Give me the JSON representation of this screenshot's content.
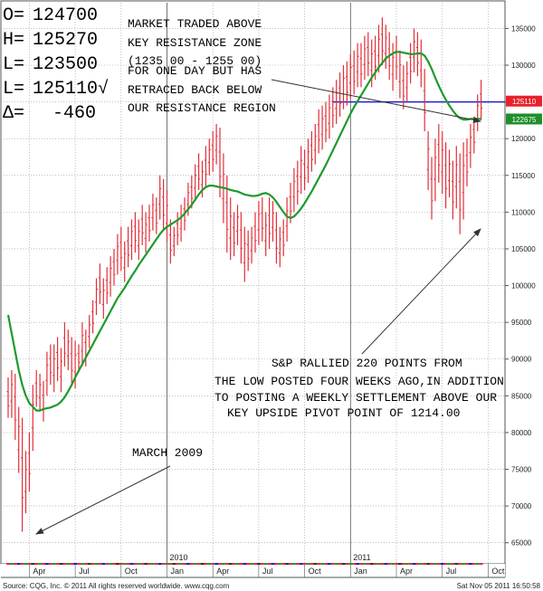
{
  "chart_data": {
    "type": "bar",
    "subtype": "weekly-ohlc-with-moving-average",
    "ohlc_readout": {
      "open_label": "O=",
      "open": "124700",
      "high_label": "H=",
      "high": "125270",
      "low_label": "L=",
      "low": "123500",
      "last_label": "L=",
      "last": "125110√",
      "change_label": "Δ=",
      "change": "-460"
    },
    "annotations": [
      {
        "lines": [
          "MARKET TRADED ABOVE",
          "KEY RESISTANCE ZONE",
          "(1235 00 - 1255 00)",
          "FOR ONE DAY BUT HAS",
          "RETRACED BACK BELOW",
          "OUR RESISTANCE REGION"
        ],
        "arrow_to": {
          "x": "2011-10-03",
          "y": 123000
        }
      },
      {
        "lines": [
          "S&P RALLIED 220 POINTS FROM",
          "THE LOW POSTED FOUR WEEKS AGO,IN ADDITION",
          "TO POSTING A WEEKLY SETTLEMENT ABOVE OUR",
          "KEY UPSIDE PIVOT POINT OF 1214.00"
        ],
        "arrow_to": {
          "x": "2011-10-03",
          "y": 108000
        }
      },
      {
        "lines": [
          "MARCH 2009"
        ],
        "arrow_to": {
          "x": "2009-03-09",
          "y": 67000
        }
      }
    ],
    "y_ticks": [
      135000,
      130000,
      125000,
      120000,
      115000,
      110000,
      105000,
      100000,
      95000,
      90000,
      85000,
      80000,
      75000,
      70000,
      65000
    ],
    "y_tick_labels": [
      "135000",
      "130000",
      "125000",
      "120000",
      "115000",
      "110000",
      "105000",
      "100000",
      "95000",
      "90000",
      "85000",
      "80000",
      "75000",
      "70000",
      "65000"
    ],
    "ylim": [
      62500,
      138500
    ],
    "x_month_ticks": [
      {
        "label": "Apr",
        "week": 6
      },
      {
        "label": "Jul",
        "week": 19
      },
      {
        "label": "Oct",
        "week": 32
      },
      {
        "label": "Jan",
        "week": 45
      },
      {
        "label": "Apr",
        "week": 58
      },
      {
        "label": "Jul",
        "week": 71
      },
      {
        "label": "Oct",
        "week": 84
      },
      {
        "label": "Jan",
        "week": 97
      },
      {
        "label": "Apr",
        "week": 110
      },
      {
        "label": "Jul",
        "week": 123
      },
      {
        "label": "Oct",
        "week": 136
      }
    ],
    "x_year_ticks": [
      {
        "label": "2010",
        "week": 45
      },
      {
        "label": "2011",
        "week": 97
      }
    ],
    "price_tags": [
      {
        "value": 125110,
        "label": "125110",
        "color": "#e8212b"
      },
      {
        "value": 122675,
        "label": "122675",
        "color": "#1f8f2a"
      }
    ],
    "resistance_line": {
      "value": 125000,
      "from_week": 92,
      "to_week": 142,
      "color": "#1f1fd0"
    },
    "series": [
      {
        "style": "ohlc",
        "color": "#e0303a",
        "highs": [
          87500,
          88500,
          88000,
          83500,
          82000,
          77500,
          80000,
          86500,
          88500,
          88000,
          87000,
          91000,
          92000,
          92000,
          93000,
          91500,
          95000,
          94000,
          93000,
          92500,
          92000,
          95000,
          94000,
          96000,
          98000,
          101000,
          103000,
          101000,
          102500,
          104000,
          105000,
          107000,
          108000,
          106000,
          108000,
          109000,
          110000,
          109000,
          111000,
          110000,
          111000,
          112500,
          112000,
          115000,
          114500,
          113000,
          109000,
          108000,
          110000,
          111000,
          112000,
          114000,
          115000,
          116500,
          118000,
          117000,
          119000,
          120000,
          121000,
          122000,
          121500,
          118000,
          115000,
          112000,
          110000,
          111000,
          110000,
          108000,
          107500,
          108000,
          110000,
          111500,
          112000,
          110000,
          112000,
          111500,
          110000,
          108000,
          109000,
          112000,
          114000,
          116000,
          117000,
          119000,
          118500,
          120000,
          121000,
          122000,
          124000,
          124500,
          125000,
          126000,
          127000,
          128000,
          129000,
          130000,
          130500,
          131500,
          132000,
          133000,
          133000,
          134000,
          134500,
          133500,
          134000,
          135500,
          136500,
          135500,
          134500,
          133000,
          134000,
          132000,
          130000,
          130500,
          133000,
          135000,
          134500,
          133500,
          129500,
          121000,
          117500,
          120000,
          122000,
          121000,
          119500,
          118500,
          117000,
          119000,
          118000,
          119500,
          120000,
          122000,
          123000,
          126000,
          128000
        ],
        "lows": [
          82000,
          82000,
          79000,
          74500,
          66500,
          69000,
          72000,
          77500,
          83500,
          83000,
          81500,
          85000,
          86500,
          85500,
          87000,
          85500,
          89000,
          88500,
          86500,
          86000,
          88500,
          89000,
          89000,
          91500,
          93500,
          96000,
          97500,
          95500,
          97500,
          98500,
          100000,
          101500,
          102000,
          100500,
          102500,
          103500,
          104500,
          103500,
          105500,
          104500,
          106000,
          107500,
          107000,
          109000,
          107500,
          106000,
          103000,
          104000,
          105500,
          106000,
          107500,
          109500,
          110500,
          111500,
          113000,
          112000,
          113500,
          115000,
          115500,
          116500,
          112000,
          108500,
          104500,
          103500,
          104000,
          105500,
          103000,
          100500,
          102000,
          103000,
          104500,
          105500,
          106000,
          104000,
          105000,
          106000,
          103000,
          102500,
          104000,
          106000,
          108500,
          110000,
          111000,
          112500,
          113000,
          114000,
          115500,
          116500,
          118000,
          118500,
          119500,
          120000,
          121500,
          122000,
          123000,
          124000,
          124500,
          125500,
          126000,
          127000,
          127000,
          128000,
          128500,
          127000,
          128000,
          129000,
          130000,
          129500,
          128000,
          126500,
          128000,
          125500,
          124000,
          125000,
          127500,
          129000,
          128500,
          127000,
          121000,
          113000,
          109000,
          111500,
          114000,
          112500,
          110500,
          112000,
          109000,
          110500,
          107000,
          109000,
          113500,
          116000,
          118000,
          121000,
          122500
        ]
      },
      {
        "name": "",
        "style": "line",
        "color": "#1e9a2c",
        "values": [
          96000,
          93500,
          91000,
          88500,
          86500,
          85000,
          84000,
          83500,
          83000,
          83000,
          83200,
          83300,
          83400,
          83600,
          83800,
          84200,
          84800,
          85600,
          86500,
          87500,
          88400,
          89300,
          90200,
          91100,
          92000,
          92900,
          93800,
          94700,
          95600,
          96500,
          97400,
          98300,
          99000,
          99700,
          100500,
          101300,
          102000,
          102800,
          103500,
          104200,
          104900,
          105600,
          106300,
          107000,
          107600,
          108000,
          108300,
          108600,
          108900,
          109300,
          109800,
          110400,
          111000,
          111700,
          112400,
          113000,
          113400,
          113600,
          113600,
          113500,
          113400,
          113300,
          113200,
          113000,
          112900,
          112800,
          112600,
          112400,
          112300,
          112200,
          112200,
          112300,
          112500,
          112600,
          112400,
          112000,
          111400,
          110700,
          110000,
          109400,
          109200,
          109400,
          109900,
          110500,
          111200,
          112000,
          112800,
          113700,
          114600,
          115500,
          116400,
          117400,
          118400,
          119400,
          120400,
          121400,
          122400,
          123400,
          124300,
          125100,
          125900,
          126700,
          127500,
          128300,
          129000,
          129700,
          130300,
          130900,
          131300,
          131600,
          131800,
          131800,
          131700,
          131600,
          131500,
          131500,
          131600,
          131600,
          131300,
          130500,
          129500,
          128300,
          127200,
          126200,
          125300,
          124500,
          123800,
          123200,
          122800,
          122600,
          122600,
          122700,
          122700,
          122700,
          122700
        ]
      }
    ]
  },
  "footer": {
    "source": "Source: CQG, Inc. © 2011 All rights reserved worldwide. www.cqg.com",
    "timestamp": "Sat Nov 05 2011 16:50:58"
  }
}
